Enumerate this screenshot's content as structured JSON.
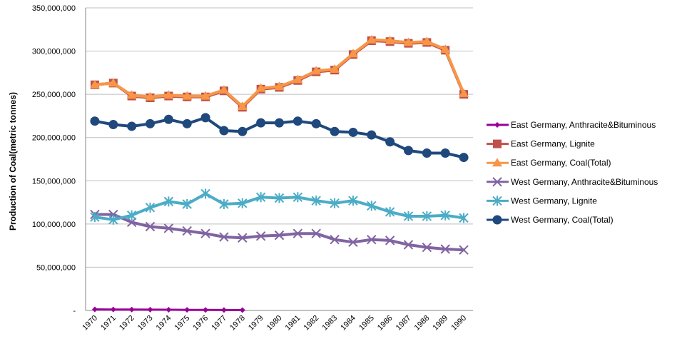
{
  "chart_data": {
    "type": "line",
    "title": "",
    "xlabel": "",
    "ylabel": "Production of Coal(metric tonnes)",
    "ylim": [
      0,
      350000000
    ],
    "yticks": [
      {
        "value": 0,
        "label": "-"
      },
      {
        "value": 50000000,
        "label": "50,000,000"
      },
      {
        "value": 100000000,
        "label": "100,000,000"
      },
      {
        "value": 150000000,
        "label": "150,000,000"
      },
      {
        "value": 200000000,
        "label": "200,000,000"
      },
      {
        "value": 250000000,
        "label": "250,000,000"
      },
      {
        "value": 300000000,
        "label": "300,000,000"
      },
      {
        "value": 350000000,
        "label": "350,000,000"
      }
    ],
    "grid": "horizontal",
    "legend_position": "right",
    "categories": [
      "1970",
      "1971",
      "1972",
      "1973",
      "1974",
      "1975",
      "1976",
      "1977",
      "1978",
      "1979",
      "1980",
      "1981",
      "1982",
      "1983",
      "1984",
      "1985",
      "1986",
      "1987",
      "1988",
      "1989",
      "1990"
    ],
    "series": [
      {
        "name": "East Germany, Anthracite&Bituminous",
        "color": "#990099",
        "marker": "diamond",
        "values": [
          1200000,
          1100000,
          1000000,
          900000,
          800000,
          700000,
          600000,
          500000,
          400000,
          null,
          null,
          null,
          null,
          null,
          null,
          null,
          null,
          null,
          null,
          null,
          null
        ]
      },
      {
        "name": "East Germany, Lignite",
        "color": "#c0504d",
        "marker": "square",
        "values": [
          261000000,
          263000000,
          248000000,
          246000000,
          248000000,
          247000000,
          247000000,
          254000000,
          235000000,
          256000000,
          258000000,
          266000000,
          276000000,
          278000000,
          296000000,
          312000000,
          311000000,
          309000000,
          310000000,
          301000000,
          250000000
        ]
      },
      {
        "name": "East Germany, Coal(Total)",
        "color": "#f79646",
        "marker": "triangle",
        "values": [
          261000000,
          263000000,
          249000000,
          247000000,
          249000000,
          248000000,
          248000000,
          255000000,
          236000000,
          257000000,
          259000000,
          267000000,
          277000000,
          279000000,
          297000000,
          313000000,
          312000000,
          310000000,
          311000000,
          302000000,
          251000000
        ]
      },
      {
        "name": "West Germany, Anthracite&Bituminous",
        "color": "#8064a2",
        "marker": "x",
        "values": [
          111000000,
          111000000,
          102000000,
          97000000,
          95000000,
          92000000,
          89000000,
          85000000,
          84000000,
          86000000,
          87000000,
          89000000,
          89000000,
          82000000,
          79000000,
          82000000,
          81000000,
          76000000,
          73000000,
          71000000,
          70000000
        ]
      },
      {
        "name": "West Germany, Lignite",
        "color": "#4bacc6",
        "marker": "star",
        "values": [
          108000000,
          105000000,
          110000000,
          119000000,
          126000000,
          123000000,
          135000000,
          123000000,
          124000000,
          131000000,
          130000000,
          131000000,
          127000000,
          124000000,
          127000000,
          121000000,
          114000000,
          109000000,
          109000000,
          110000000,
          107000000
        ]
      },
      {
        "name": "West Germany, Coal(Total)",
        "color": "#1f497d",
        "marker": "circle",
        "values": [
          219000000,
          215000000,
          213000000,
          216000000,
          221000000,
          216000000,
          223000000,
          208000000,
          207000000,
          217000000,
          217000000,
          219000000,
          216000000,
          207000000,
          206000000,
          203000000,
          195000000,
          185000000,
          182000000,
          182000000,
          177000000
        ]
      }
    ]
  }
}
